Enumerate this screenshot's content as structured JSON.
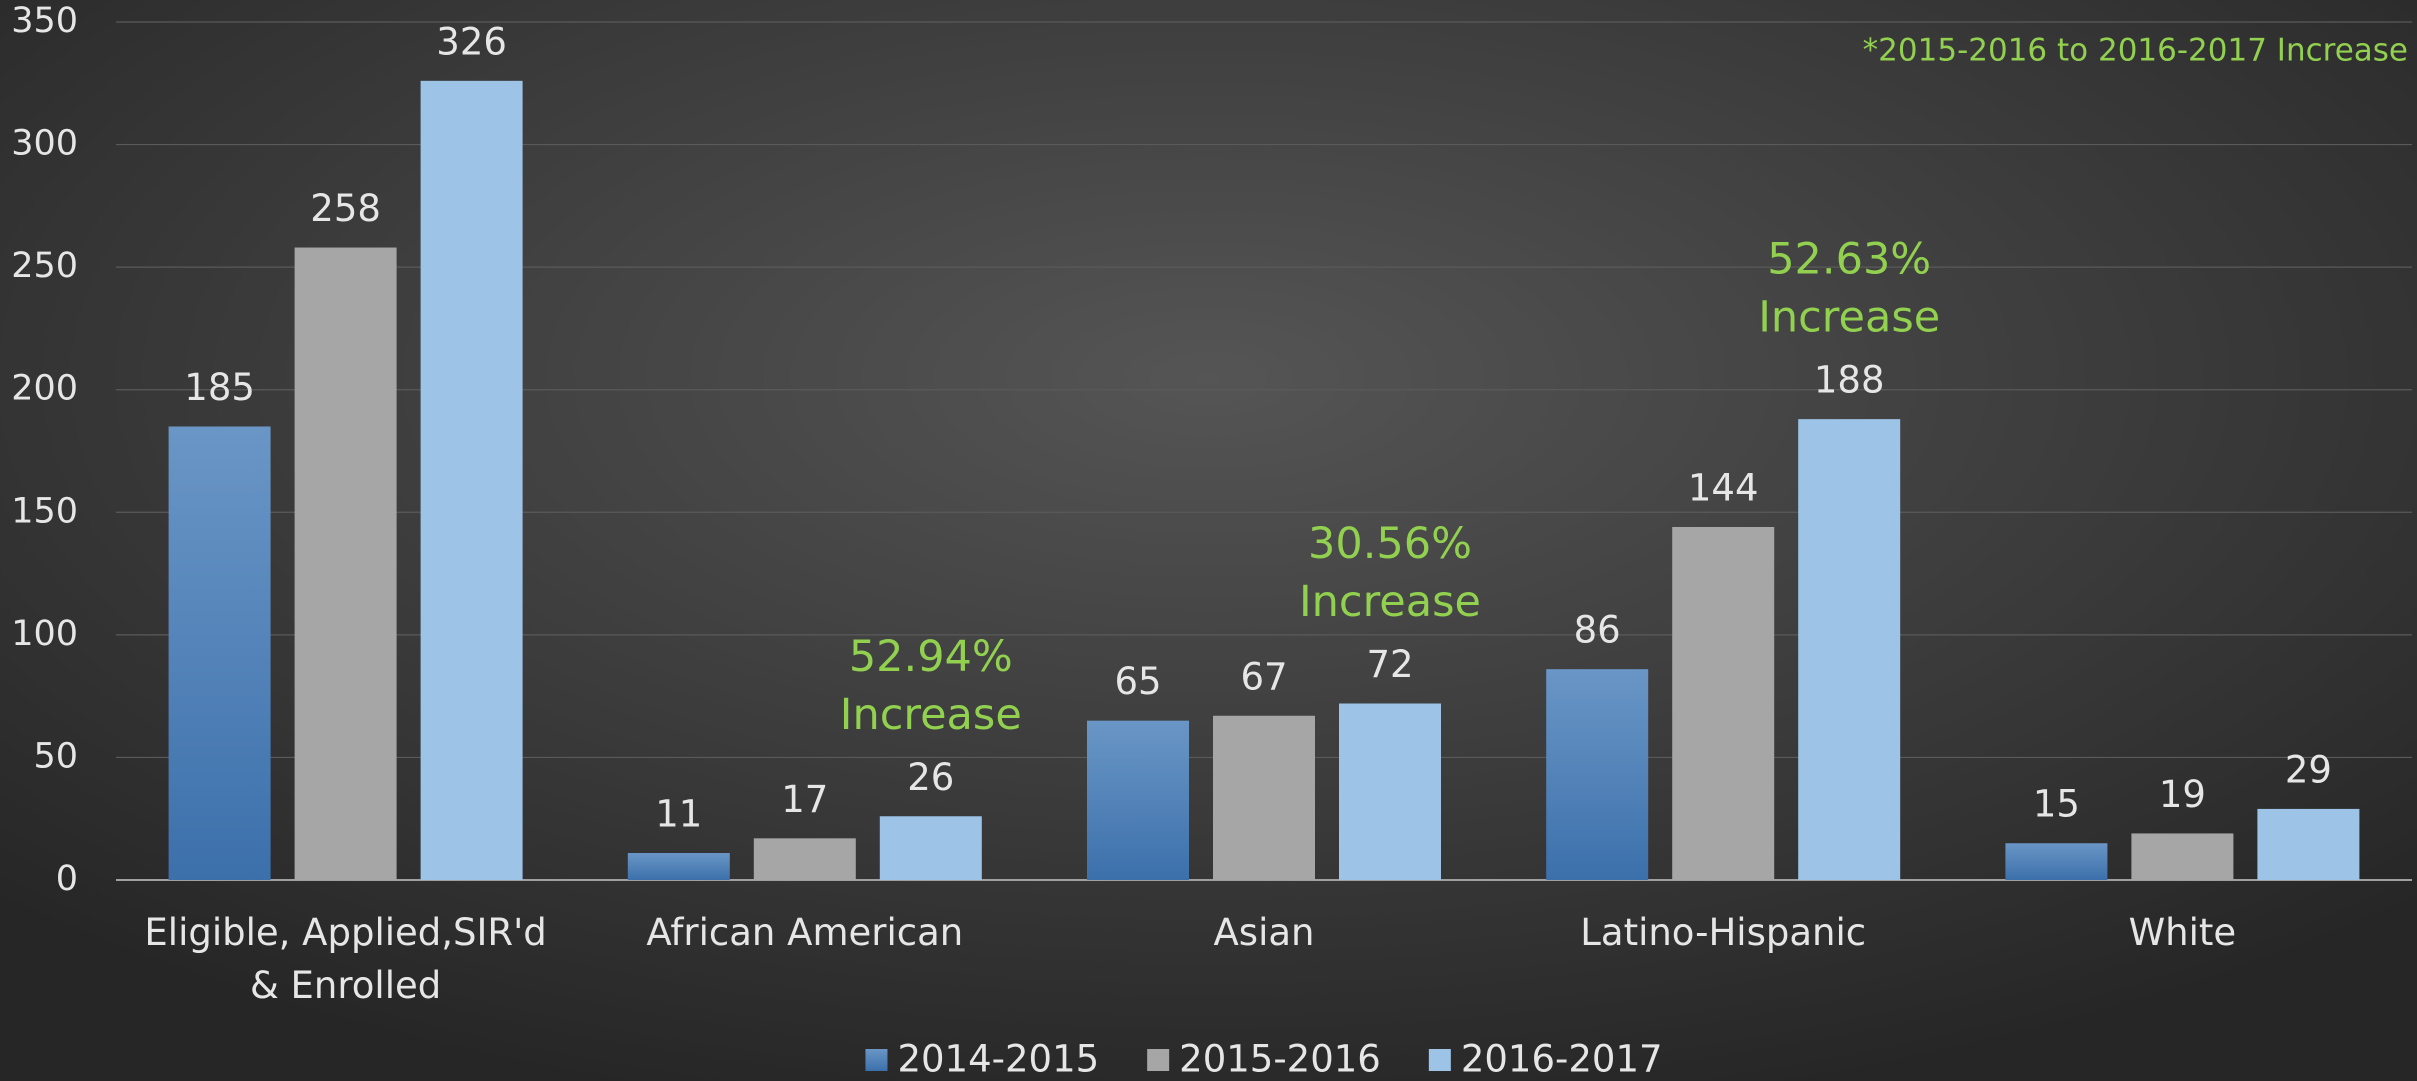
{
  "chart_data": {
    "type": "bar",
    "categories": [
      "Eligible, Applied,SIR'd & Enrolled",
      "African American",
      "Asian",
      "Latino-Hispanic",
      "White"
    ],
    "series": [
      {
        "name": "2014-2015",
        "color": "#4a7fb9",
        "values": [
          185,
          11,
          65,
          86,
          15
        ]
      },
      {
        "name": "2015-2016",
        "color": "#a6a6a6",
        "values": [
          258,
          17,
          67,
          144,
          19
        ]
      },
      {
        "name": "2016-2017",
        "color": "#9dc3e6",
        "values": [
          326,
          26,
          72,
          188,
          29
        ]
      }
    ],
    "ylim": [
      0,
      350
    ],
    "yticks": [
      0,
      50,
      100,
      150,
      200,
      250,
      300,
      350
    ],
    "grid": true,
    "legend": "bottom",
    "annotations": [
      [
        "Increase"
      ],
      [
        "52.94%",
        "Increase"
      ],
      [
        "30.56%",
        "Increase"
      ],
      [
        "52.63%",
        "Increase"
      ]
    ],
    "note": "*2015-2016 to 2016-2017 Increase"
  }
}
